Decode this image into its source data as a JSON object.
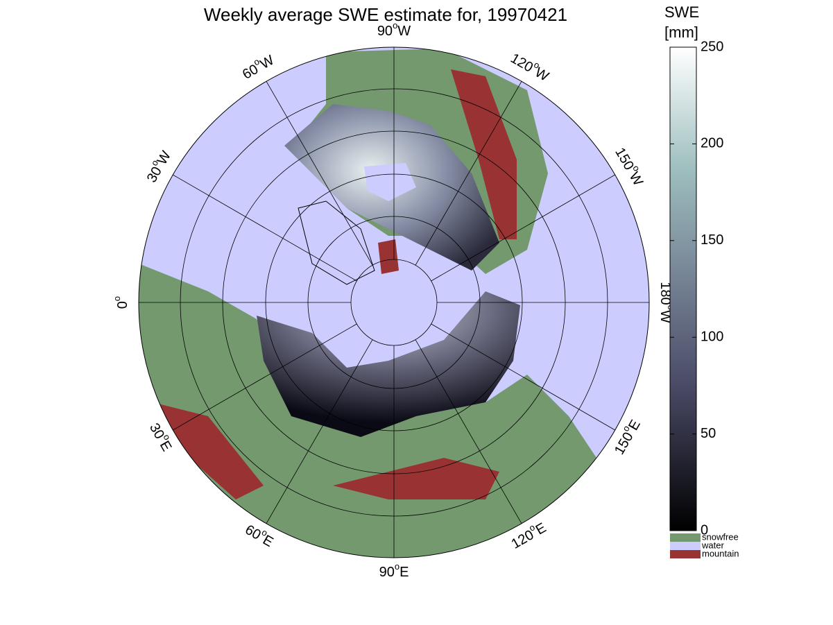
{
  "title": "Weekly average SWE estimate for, 19970421",
  "longitude_labels": [
    {
      "deg": "90",
      "hem": "W"
    },
    {
      "deg": "120",
      "hem": "W"
    },
    {
      "deg": "150",
      "hem": "W"
    },
    {
      "deg": "180",
      "hem": "W"
    },
    {
      "deg": "150",
      "hem": "E"
    },
    {
      "deg": "120",
      "hem": "E"
    },
    {
      "deg": "90",
      "hem": "E"
    },
    {
      "deg": "60",
      "hem": "E"
    },
    {
      "deg": "30",
      "hem": "E"
    },
    {
      "deg": "0",
      "hem": ""
    },
    {
      "deg": "30",
      "hem": "W"
    },
    {
      "deg": "60",
      "hem": "W"
    }
  ],
  "degree_mark": "o",
  "colorbar": {
    "label": [
      "SWE",
      "[mm]"
    ],
    "lim": [
      0,
      250
    ],
    "ticks": [
      0,
      50,
      100,
      150,
      200,
      250
    ]
  },
  "legend": [
    {
      "name": "snowfree",
      "color": "#74996f"
    },
    {
      "name": "water",
      "color": "#ccccff"
    },
    {
      "name": "mountain",
      "color": "#993333"
    }
  ]
}
